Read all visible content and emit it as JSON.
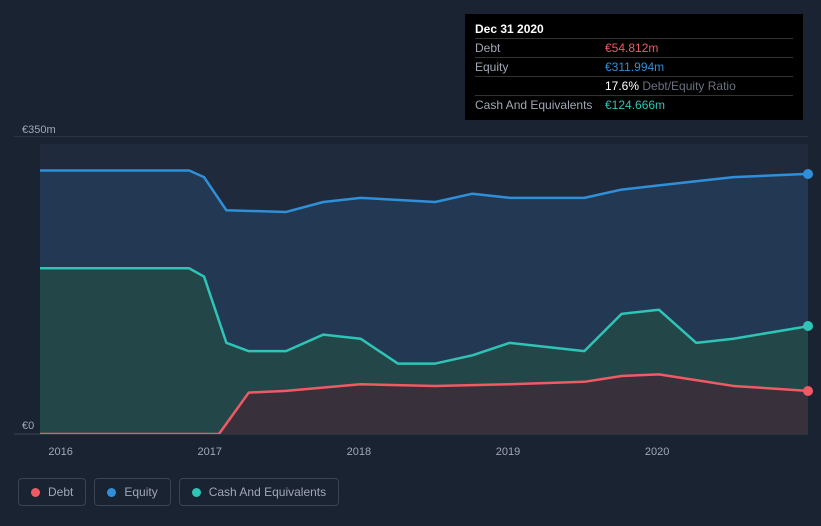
{
  "tooltip": {
    "date": "Dec 31 2020",
    "rows": [
      {
        "label": "Debt",
        "value": "€54.812m",
        "color": "#ef5a64"
      },
      {
        "label": "Equity",
        "value": "€311.994m",
        "color": "#2f8fd8"
      },
      {
        "label": "",
        "value": "17.6%",
        "color": "#ffffff",
        "suffix": "Debt/Equity Ratio"
      },
      {
        "label": "Cash And Equivalents",
        "value": "€124.666m",
        "color": "#2ec4b6"
      }
    ]
  },
  "chart": {
    "type": "area",
    "background_color": "#1a2332",
    "plot_background_color": "#1f2b3d",
    "ylim": [
      0,
      350
    ],
    "y_ticks": [
      {
        "v": 350,
        "label": "€350m"
      },
      {
        "v": 0,
        "label": "€0"
      }
    ],
    "x_ticks": [
      {
        "t": 2016,
        "label": "2016"
      },
      {
        "t": 2017,
        "label": "2017"
      },
      {
        "t": 2018,
        "label": "2018"
      },
      {
        "t": 2019,
        "label": "2019"
      },
      {
        "t": 2020,
        "label": "2020"
      }
    ],
    "xlim": [
      2015.85,
      2021.0
    ],
    "series": {
      "equity": {
        "label": "Equity",
        "color": "#2f8fd8",
        "fill_color": "#233a55",
        "line_width": 2.5,
        "x": [
          2015.85,
          2016.0,
          2016.5,
          2016.85,
          2016.95,
          2017.1,
          2017.5,
          2017.75,
          2018.0,
          2018.5,
          2018.75,
          2019.0,
          2019.5,
          2019.75,
          2020.0,
          2020.5,
          2021.0
        ],
        "y": [
          318,
          318,
          318,
          318,
          310,
          270,
          268,
          280,
          285,
          280,
          290,
          285,
          285,
          295,
          300,
          310,
          314
        ]
      },
      "cash": {
        "label": "Cash And Equivalents",
        "color": "#2ec4b6",
        "fill_color": "#244947",
        "line_width": 2.5,
        "x": [
          2015.85,
          2016.0,
          2016.5,
          2016.85,
          2016.95,
          2017.1,
          2017.25,
          2017.5,
          2017.75,
          2018.0,
          2018.25,
          2018.5,
          2018.75,
          2019.0,
          2019.5,
          2019.75,
          2020.0,
          2020.25,
          2020.5,
          2021.0
        ],
        "y": [
          200,
          200,
          200,
          200,
          190,
          110,
          100,
          100,
          120,
          115,
          85,
          85,
          95,
          110,
          100,
          145,
          150,
          110,
          115,
          130
        ]
      },
      "debt": {
        "label": "Debt",
        "color": "#ef5a64",
        "fill_color": "#3b2f3a",
        "line_width": 2.5,
        "x": [
          2015.85,
          2016.95,
          2017.05,
          2017.25,
          2017.5,
          2018.0,
          2018.5,
          2019.0,
          2019.5,
          2019.75,
          2020.0,
          2020.5,
          2021.0
        ],
        "y": [
          0,
          0,
          0,
          50,
          52,
          60,
          58,
          60,
          63,
          70,
          72,
          58,
          52
        ]
      }
    },
    "end_markers": [
      {
        "series": "equity",
        "x": 2021.0,
        "y": 314,
        "color": "#2f8fd8"
      },
      {
        "series": "cash",
        "x": 2021.0,
        "y": 130,
        "color": "#2ec4b6"
      },
      {
        "series": "debt",
        "x": 2021.0,
        "y": 52,
        "color": "#ef5a64"
      }
    ]
  },
  "legend": [
    {
      "label": "Debt",
      "color": "#ef5a64"
    },
    {
      "label": "Equity",
      "color": "#2f8fd8"
    },
    {
      "label": "Cash And Equivalents",
      "color": "#2ec4b6"
    }
  ]
}
